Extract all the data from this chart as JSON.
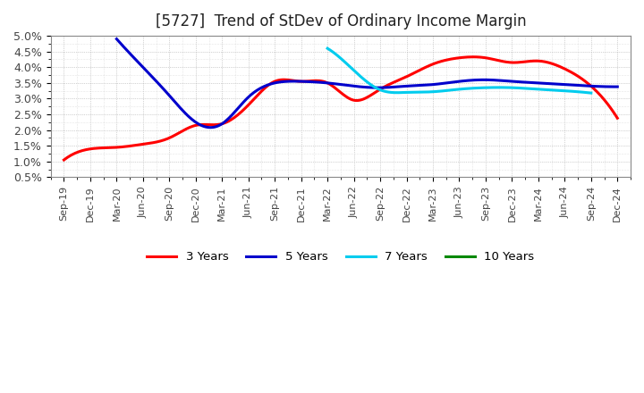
{
  "title": "[5727]  Trend of StDev of Ordinary Income Margin",
  "title_fontsize": 12,
  "background_color": "#ffffff",
  "plot_background": "#ffffff",
  "ylim": [
    0.005,
    0.05
  ],
  "yticks": [
    0.005,
    0.01,
    0.015,
    0.02,
    0.025,
    0.03,
    0.035,
    0.04,
    0.045,
    0.05
  ],
  "ytick_labels": [
    "0.5%",
    "1.0%",
    "1.5%",
    "2.0%",
    "2.5%",
    "3.0%",
    "3.5%",
    "4.0%",
    "4.5%",
    "5.0%"
  ],
  "x_labels": [
    "Sep-19",
    "Dec-19",
    "Mar-20",
    "Jun-20",
    "Sep-20",
    "Dec-20",
    "Mar-21",
    "Jun-21",
    "Sep-21",
    "Dec-21",
    "Mar-22",
    "Jun-22",
    "Sep-22",
    "Dec-22",
    "Mar-23",
    "Jun-23",
    "Sep-23",
    "Dec-23",
    "Mar-24",
    "Jun-24",
    "Sep-24",
    "Dec-24"
  ],
  "series": {
    "3 Years": {
      "color": "#ff0000",
      "linewidth": 2.2,
      "data_y": [
        0.0105,
        0.014,
        0.0145,
        0.0155,
        0.0175,
        0.0215,
        0.022,
        0.028,
        0.0355,
        0.0355,
        0.035,
        0.0295,
        0.033,
        0.037,
        0.041,
        0.043,
        0.043,
        0.0415,
        0.042,
        0.0395,
        0.034,
        0.0238
      ]
    },
    "5 Years": {
      "color": "#0000cc",
      "linewidth": 2.2,
      "data_y": [
        null,
        null,
        0.049,
        0.04,
        0.031,
        0.0225,
        0.022,
        0.0305,
        0.035,
        0.0355,
        0.035,
        0.034,
        0.0335,
        0.034,
        0.0345,
        0.0355,
        0.036,
        0.0355,
        0.035,
        0.0345,
        0.034,
        0.0338
      ]
    },
    "7 Years": {
      "color": "#00ccee",
      "linewidth": 2.2,
      "data_y": [
        null,
        null,
        null,
        null,
        null,
        null,
        null,
        null,
        null,
        null,
        0.046,
        0.039,
        0.0328,
        0.032,
        0.0322,
        0.033,
        0.0335,
        0.0335,
        0.033,
        0.0325,
        0.0318,
        null
      ]
    },
    "10 Years": {
      "color": "#008800",
      "linewidth": 2.2,
      "data_y": [
        null,
        null,
        null,
        null,
        null,
        null,
        null,
        null,
        null,
        null,
        null,
        null,
        null,
        null,
        null,
        null,
        null,
        null,
        null,
        null,
        null,
        null
      ]
    }
  },
  "legend_labels": [
    "3 Years",
    "5 Years",
    "7 Years",
    "10 Years"
  ],
  "legend_colors": [
    "#ff0000",
    "#0000cc",
    "#00ccee",
    "#008800"
  ]
}
